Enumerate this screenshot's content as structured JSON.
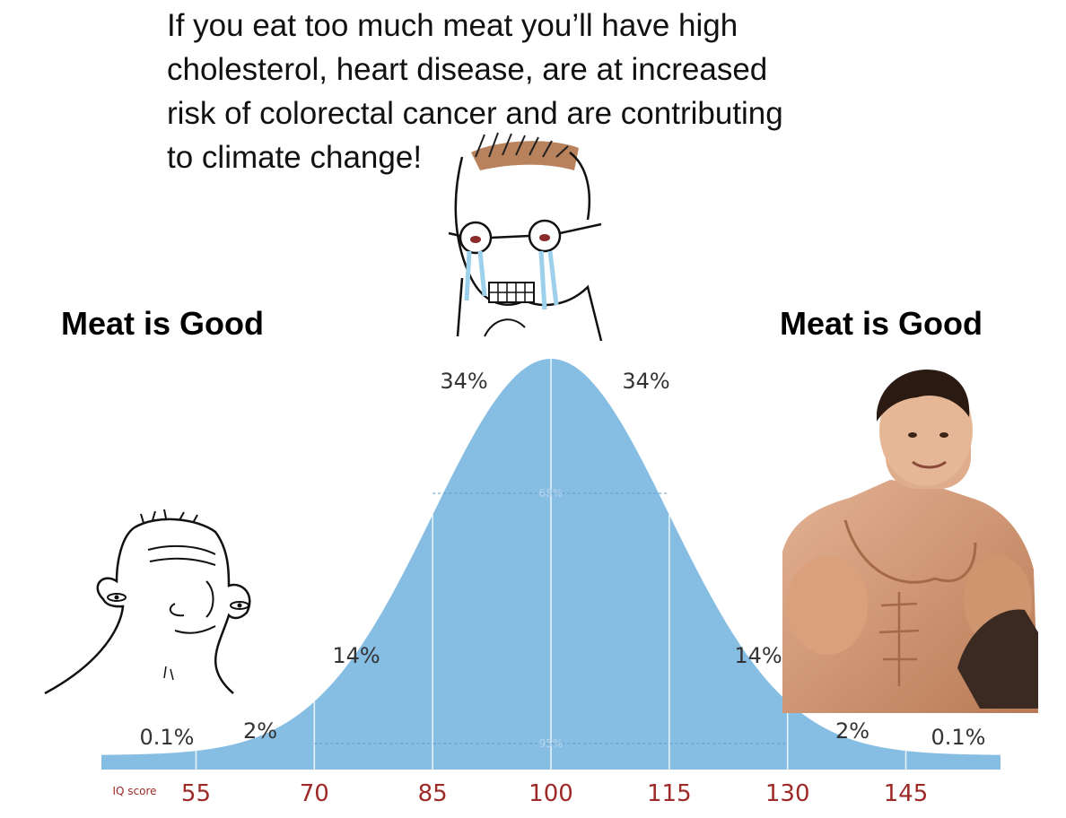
{
  "caption": "If you eat too much meat you’ll have high\ncholesterol, heart disease, are at increased\nrisk of colorectal cancer and are contributing\nto climate change!",
  "left_label": "Meat is Good",
  "right_label": "Meat is Good",
  "chart_data": {
    "type": "area",
    "xlabel": "IQ score",
    "ylabel": "",
    "x_ticks": [
      55,
      70,
      85,
      100,
      115,
      130,
      145
    ],
    "xlim": [
      43,
      157
    ],
    "mean": 100,
    "sd": 15,
    "bands": [
      {
        "from": 43,
        "to": 55,
        "label": "0.1%"
      },
      {
        "from": 55,
        "to": 70,
        "label": "2%"
      },
      {
        "from": 70,
        "to": 85,
        "label": "14%"
      },
      {
        "from": 85,
        "to": 100,
        "label": "34%"
      },
      {
        "from": 100,
        "to": 115,
        "label": "34%"
      },
      {
        "from": 115,
        "to": 130,
        "label": "14%"
      },
      {
        "from": 130,
        "to": 145,
        "label": "2%"
      },
      {
        "from": 145,
        "to": 157,
        "label": "0.1%"
      }
    ],
    "ranges": [
      {
        "from": 85,
        "to": 115,
        "label": "68%"
      },
      {
        "from": 70,
        "to": 130,
        "label": "95%"
      }
    ],
    "colors": {
      "fill": "#86bde2",
      "tick_text": "#9e2a28",
      "label_text": "#333333"
    }
  }
}
